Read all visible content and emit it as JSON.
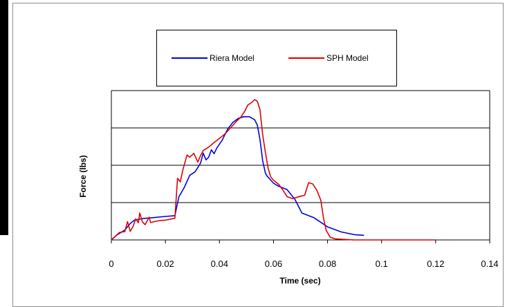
{
  "chart_data": {
    "type": "line",
    "title": "",
    "xlabel": "Time (sec)",
    "ylabel": "Force (lbs)",
    "xlim": [
      0,
      0.14
    ],
    "ylim": [
      0,
      8
    ],
    "x_ticks": [
      0,
      0.02,
      0.04,
      0.06,
      0.08,
      0.1,
      0.12,
      0.14
    ],
    "x_tick_labels": [
      "0",
      "0.02",
      "0.04",
      "0.06",
      "0.08",
      "0.1",
      "0.12",
      "0.14"
    ],
    "y_gridlines": [
      2,
      4,
      6,
      8
    ],
    "y_tick_labels_shown": false,
    "grid": "horizontal",
    "legend_position": "top-center",
    "series": [
      {
        "name": "Riera Model",
        "color": "#0000dd",
        "points": [
          [
            0,
            0.0
          ],
          [
            0.002,
            0.26
          ],
          [
            0.005,
            0.53
          ],
          [
            0.007,
            0.88
          ],
          [
            0.0085,
            1.06
          ],
          [
            0.012,
            1.15
          ],
          [
            0.016,
            1.2
          ],
          [
            0.02,
            1.26
          ],
          [
            0.0235,
            1.3
          ],
          [
            0.025,
            2.31
          ],
          [
            0.027,
            2.82
          ],
          [
            0.029,
            3.46
          ],
          [
            0.031,
            3.65
          ],
          [
            0.033,
            4.11
          ],
          [
            0.034,
            4.65
          ],
          [
            0.035,
            4.29
          ],
          [
            0.036,
            4.43
          ],
          [
            0.037,
            4.83
          ],
          [
            0.038,
            4.62
          ],
          [
            0.039,
            4.92
          ],
          [
            0.041,
            5.34
          ],
          [
            0.043,
            5.93
          ],
          [
            0.045,
            6.3
          ],
          [
            0.047,
            6.51
          ],
          [
            0.049,
            6.6
          ],
          [
            0.051,
            6.6
          ],
          [
            0.053,
            6.44
          ],
          [
            0.054,
            6.16
          ],
          [
            0.055,
            5.37
          ],
          [
            0.056,
            4.23
          ],
          [
            0.057,
            3.58
          ],
          [
            0.0575,
            3.44
          ],
          [
            0.06,
            3.04
          ],
          [
            0.062,
            2.87
          ],
          [
            0.065,
            2.7
          ],
          [
            0.068,
            2.15
          ],
          [
            0.0705,
            1.44
          ],
          [
            0.075,
            1.19
          ],
          [
            0.08,
            0.7
          ],
          [
            0.085,
            0.43
          ],
          [
            0.09,
            0.28
          ],
          [
            0.0935,
            0.25
          ]
        ]
      },
      {
        "name": "SPH Model",
        "color": "#dd0000",
        "points": [
          [
            0,
            0.0
          ],
          [
            0.003,
            0.4
          ],
          [
            0.005,
            0.45
          ],
          [
            0.006,
            0.98
          ],
          [
            0.007,
            0.46
          ],
          [
            0.008,
            0.72
          ],
          [
            0.009,
            1.13
          ],
          [
            0.01,
            0.92
          ],
          [
            0.0105,
            1.44
          ],
          [
            0.0115,
            0.97
          ],
          [
            0.0125,
            0.82
          ],
          [
            0.014,
            1.22
          ],
          [
            0.0145,
            0.93
          ],
          [
            0.016,
            0.98
          ],
          [
            0.018,
            1.04
          ],
          [
            0.02,
            1.06
          ],
          [
            0.0235,
            1.16
          ],
          [
            0.0245,
            3.3
          ],
          [
            0.0255,
            3.11
          ],
          [
            0.0265,
            3.77
          ],
          [
            0.028,
            4.55
          ],
          [
            0.029,
            4.43
          ],
          [
            0.0305,
            4.64
          ],
          [
            0.032,
            4.17
          ],
          [
            0.033,
            4.51
          ],
          [
            0.034,
            4.79
          ],
          [
            0.036,
            4.97
          ],
          [
            0.038,
            5.22
          ],
          [
            0.04,
            5.44
          ],
          [
            0.042,
            5.67
          ],
          [
            0.044,
            5.98
          ],
          [
            0.046,
            6.31
          ],
          [
            0.048,
            6.59
          ],
          [
            0.0495,
            6.93
          ],
          [
            0.0505,
            7.23
          ],
          [
            0.052,
            7.37
          ],
          [
            0.053,
            7.52
          ],
          [
            0.054,
            7.43
          ],
          [
            0.055,
            6.97
          ],
          [
            0.056,
            5.63
          ],
          [
            0.057,
            4.69
          ],
          [
            0.058,
            3.84
          ],
          [
            0.059,
            3.37
          ],
          [
            0.06,
            3.2
          ],
          [
            0.062,
            2.97
          ],
          [
            0.064,
            2.55
          ],
          [
            0.065,
            2.32
          ],
          [
            0.067,
            2.21
          ],
          [
            0.07,
            2.34
          ],
          [
            0.0715,
            2.39
          ],
          [
            0.073,
            3.07
          ],
          [
            0.0745,
            3.0
          ],
          [
            0.076,
            2.67
          ],
          [
            0.0775,
            2.13
          ],
          [
            0.0785,
            1.17
          ],
          [
            0.0795,
            0.51
          ],
          [
            0.081,
            0.14
          ],
          [
            0.083,
            0.05
          ],
          [
            0.09,
            0.0
          ],
          [
            0.12,
            0.0
          ]
        ]
      }
    ]
  }
}
